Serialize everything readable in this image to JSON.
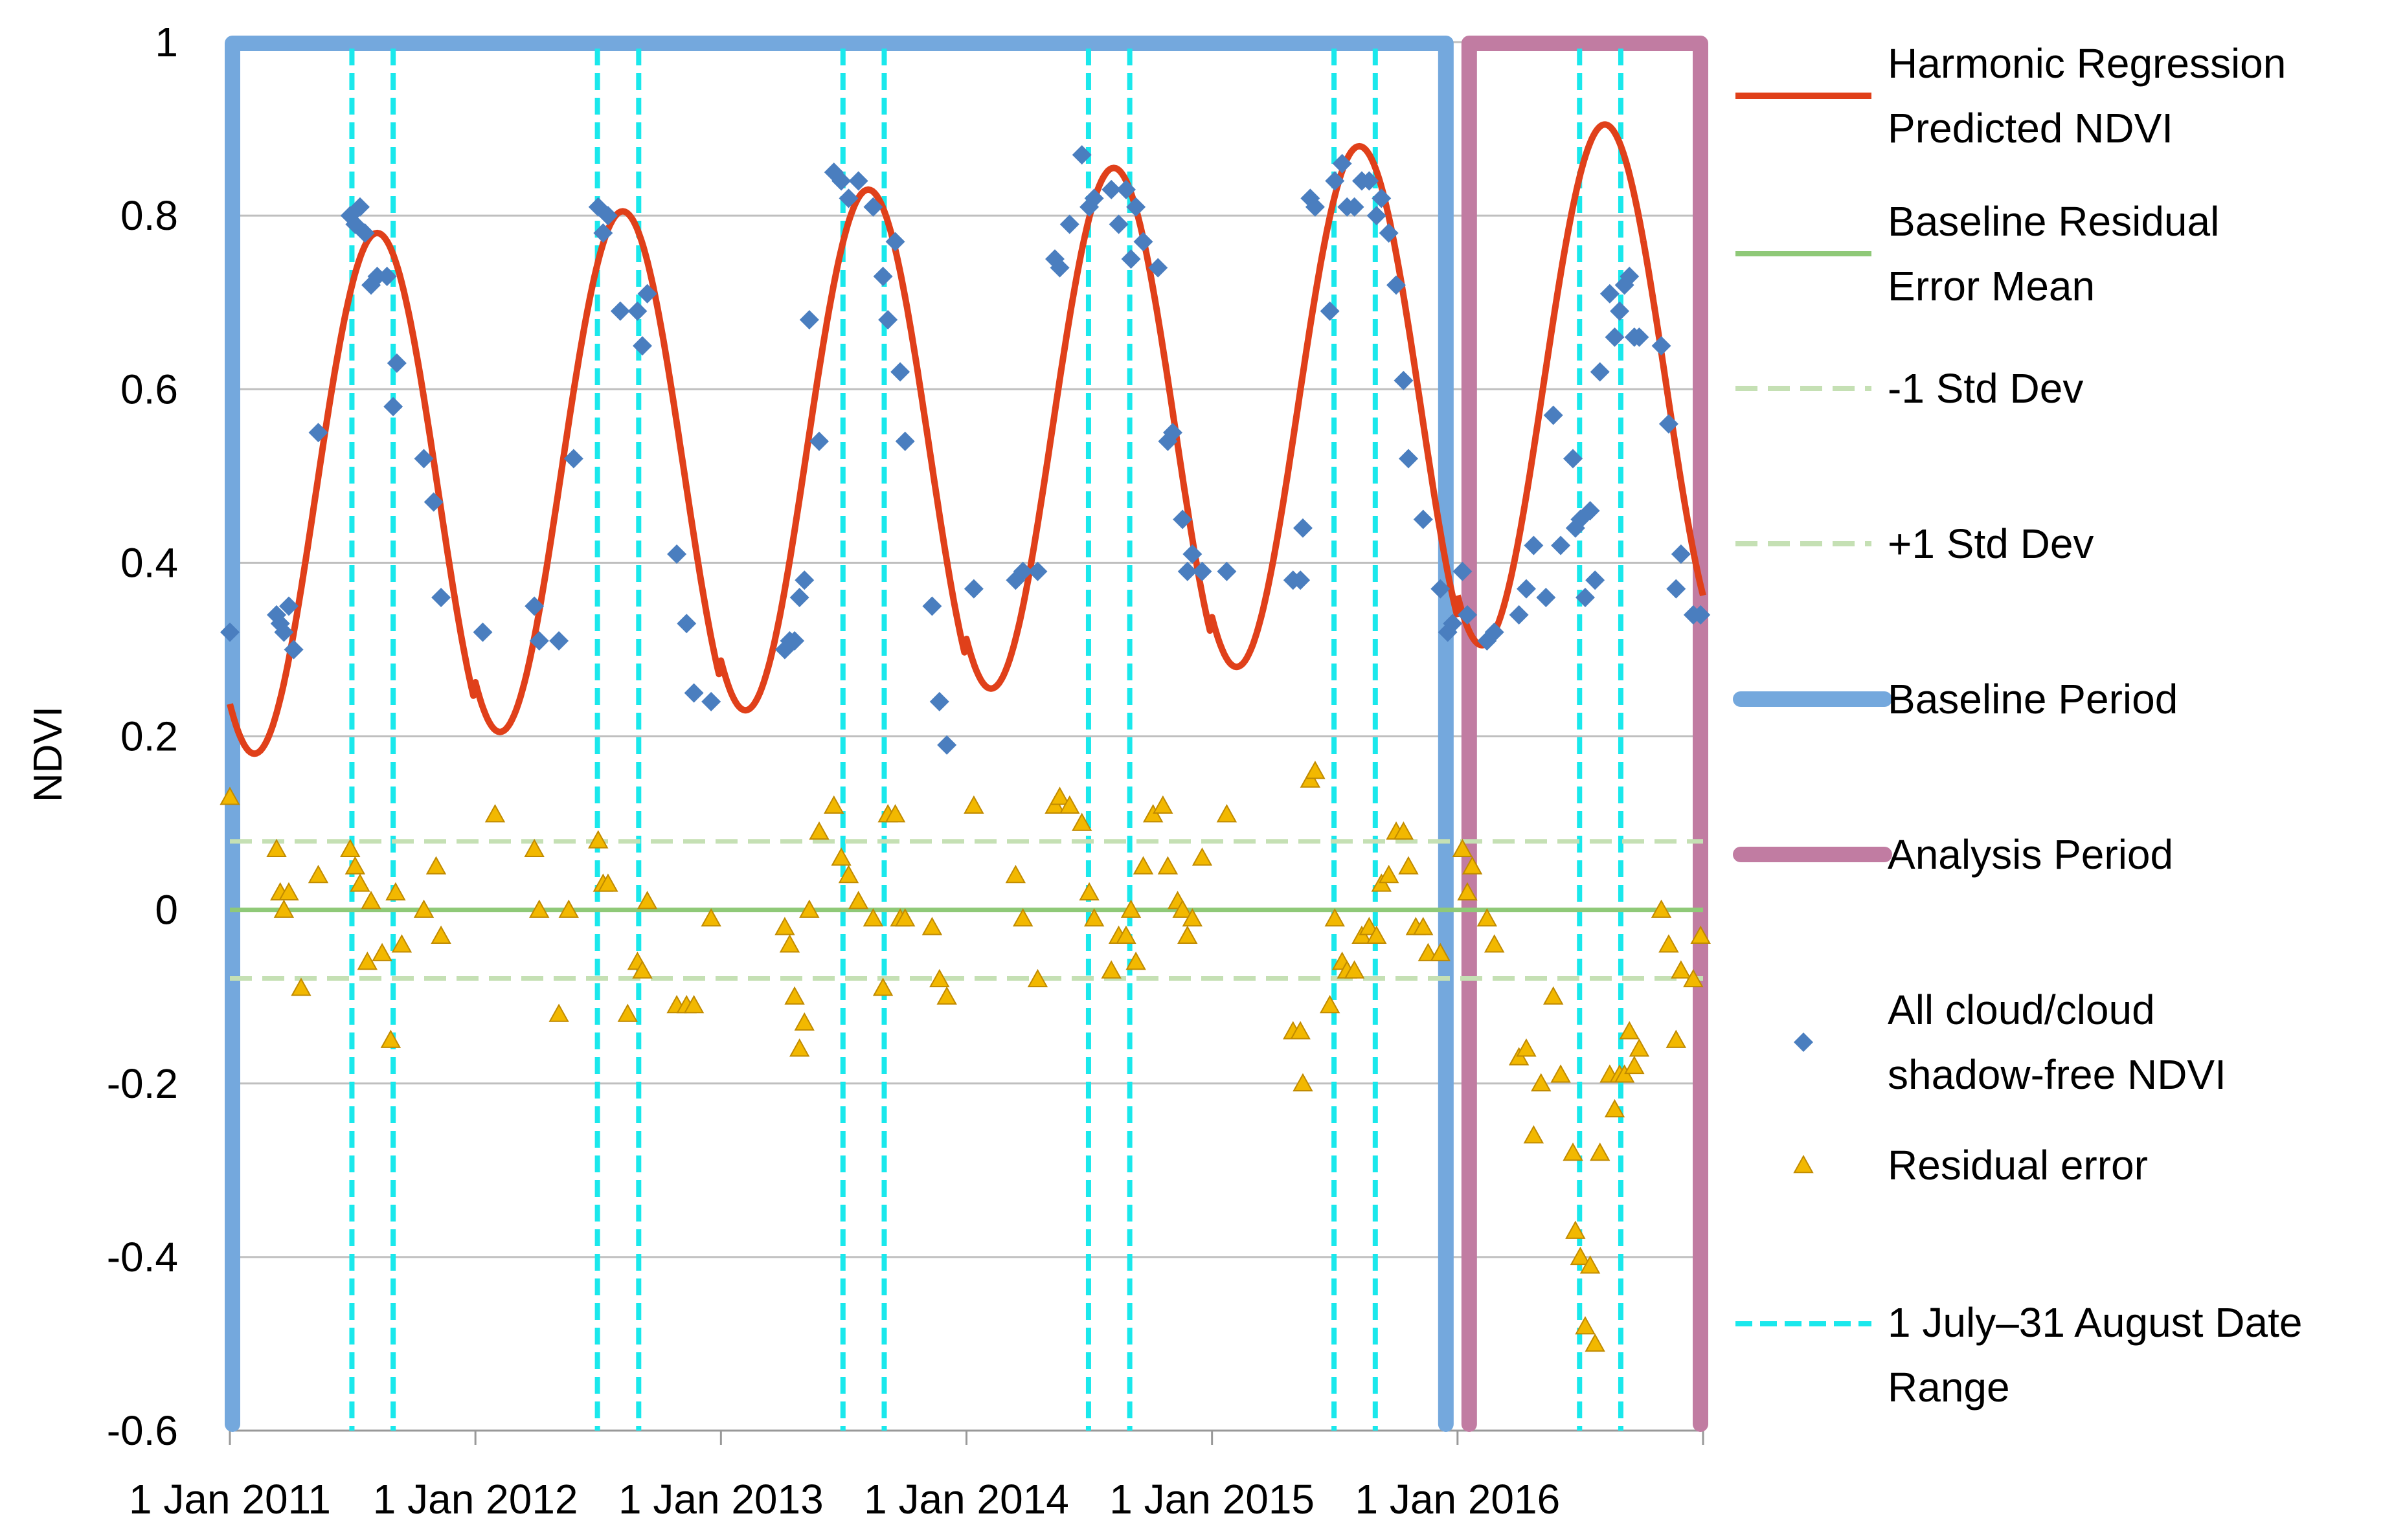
{
  "chart_data": {
    "type": "line",
    "title": "",
    "ylabel": "NDVI",
    "xlabel": "",
    "ylim": [
      -0.6,
      1.0
    ],
    "yticks": [
      1,
      0.8,
      0.6,
      0.4,
      0.2,
      0,
      -0.2,
      -0.4,
      -0.6
    ],
    "ytick_labels": [
      "1",
      "0.8",
      "0.6",
      "0.4",
      "0.2",
      "0",
      "-0.2",
      "-0.4",
      "-0.6"
    ],
    "xlim": [
      2011.0,
      2017.0
    ],
    "xticks": [
      2011,
      2012,
      2013,
      2014,
      2015,
      2016
    ],
    "xtick_labels": [
      "1 Jan 2011",
      "1 Jan 2012",
      "1 Jan 2013",
      "1 Jan 2014",
      "1 Jan 2015",
      "1 Jan 2016"
    ],
    "grid": true,
    "legend_position": "right",
    "colors": {
      "harmonic": "#e0401a",
      "baseline_mean": "#8fc978",
      "std_dev": "#c5e0b4",
      "baseline_period": "#74a8dd",
      "analysis_period": "#c17ca2",
      "ndvi_points": "#4a7ebf",
      "residual_points": "#f2b800",
      "date_range": "#1ae8ec"
    },
    "harmonic_model": {
      "name": "Harmonic Regression Predicted NDVI",
      "segments": [
        {
          "start": 2011.0,
          "end": 2016.0,
          "min": [
            0.18,
            0.205,
            0.23,
            0.255,
            0.28
          ],
          "max": [
            0.78,
            0.805,
            0.83,
            0.855,
            0.88
          ]
        },
        {
          "start": 2016.0,
          "end": 2017.0,
          "min": [
            0.305
          ],
          "max": [
            0.905
          ]
        }
      ],
      "peak_phase": 0.6,
      "trough_phase": 0.0
    },
    "baseline_residual_mean": {
      "name": "Baseline Residual Error Mean",
      "value": 0.0
    },
    "std_dev_lines": [
      {
        "name": "-1 Std Dev",
        "value": -0.079
      },
      {
        "name": "+1 Std Dev",
        "value": 0.079
      }
    ],
    "periods": [
      {
        "name": "Baseline Period",
        "start": 2011.0,
        "end": 2016.0
      },
      {
        "name": "Analysis Period",
        "start": 2016.0,
        "end": 2017.0
      }
    ],
    "date_range_lines": {
      "name": "1 July–31 August Date Range",
      "x": [
        2011.497,
        2011.665,
        2012.497,
        2012.665,
        2013.497,
        2013.665,
        2014.497,
        2014.665,
        2015.497,
        2015.665,
        2016.497,
        2016.665
      ]
    },
    "ndvi_points": {
      "name": "All cloud/cloud shadow-free NDVI",
      "points": [
        [
          2011.0,
          0.32
        ],
        [
          2011.19,
          0.34
        ],
        [
          2011.205,
          0.33
        ],
        [
          2011.22,
          0.32
        ],
        [
          2011.24,
          0.35
        ],
        [
          2011.26,
          0.3
        ],
        [
          2011.36,
          0.55
        ],
        [
          2011.49,
          0.8
        ],
        [
          2011.51,
          0.79
        ],
        [
          2011.53,
          0.81
        ],
        [
          2011.55,
          0.78
        ],
        [
          2011.575,
          0.72
        ],
        [
          2011.6,
          0.73
        ],
        [
          2011.64,
          0.73
        ],
        [
          2011.665,
          0.58
        ],
        [
          2011.68,
          0.63
        ],
        [
          2011.79,
          0.52
        ],
        [
          2011.83,
          0.47
        ],
        [
          2011.86,
          0.36
        ],
        [
          2012.03,
          0.32
        ],
        [
          2012.24,
          0.35
        ],
        [
          2012.26,
          0.31
        ],
        [
          2012.34,
          0.31
        ],
        [
          2012.4,
          0.52
        ],
        [
          2012.5,
          0.81
        ],
        [
          2012.52,
          0.78
        ],
        [
          2012.54,
          0.8
        ],
        [
          2012.59,
          0.69
        ],
        [
          2012.66,
          0.69
        ],
        [
          2012.68,
          0.65
        ],
        [
          2012.7,
          0.71
        ],
        [
          2012.82,
          0.41
        ],
        [
          2012.86,
          0.33
        ],
        [
          2012.89,
          0.25
        ],
        [
          2012.96,
          0.24
        ],
        [
          2013.26,
          0.3
        ],
        [
          2013.28,
          0.31
        ],
        [
          2013.3,
          0.31
        ],
        [
          2013.32,
          0.36
        ],
        [
          2013.34,
          0.38
        ],
        [
          2013.36,
          0.68
        ],
        [
          2013.4,
          0.54
        ],
        [
          2013.46,
          0.85
        ],
        [
          2013.49,
          0.84
        ],
        [
          2013.52,
          0.82
        ],
        [
          2013.56,
          0.84
        ],
        [
          2013.62,
          0.81
        ],
        [
          2013.66,
          0.73
        ],
        [
          2013.68,
          0.68
        ],
        [
          2013.71,
          0.77
        ],
        [
          2013.73,
          0.62
        ],
        [
          2013.75,
          0.54
        ],
        [
          2013.86,
          0.35
        ],
        [
          2013.89,
          0.24
        ],
        [
          2013.92,
          0.19
        ],
        [
          2014.03,
          0.37
        ],
        [
          2014.2,
          0.38
        ],
        [
          2014.23,
          0.39
        ],
        [
          2014.29,
          0.39
        ],
        [
          2014.36,
          0.75
        ],
        [
          2014.38,
          0.74
        ],
        [
          2014.42,
          0.79
        ],
        [
          2014.47,
          0.87
        ],
        [
          2014.5,
          0.81
        ],
        [
          2014.52,
          0.82
        ],
        [
          2014.59,
          0.83
        ],
        [
          2014.62,
          0.79
        ],
        [
          2014.65,
          0.83
        ],
        [
          2014.67,
          0.75
        ],
        [
          2014.69,
          0.81
        ],
        [
          2014.72,
          0.77
        ],
        [
          2014.78,
          0.74
        ],
        [
          2014.82,
          0.54
        ],
        [
          2014.84,
          0.55
        ],
        [
          2014.88,
          0.45
        ],
        [
          2014.9,
          0.39
        ],
        [
          2014.92,
          0.41
        ],
        [
          2014.96,
          0.39
        ],
        [
          2015.06,
          0.39
        ],
        [
          2015.33,
          0.38
        ],
        [
          2015.36,
          0.38
        ],
        [
          2015.37,
          0.44
        ],
        [
          2015.4,
          0.82
        ],
        [
          2015.42,
          0.81
        ],
        [
          2015.48,
          0.69
        ],
        [
          2015.5,
          0.84
        ],
        [
          2015.53,
          0.86
        ],
        [
          2015.55,
          0.81
        ],
        [
          2015.58,
          0.81
        ],
        [
          2015.61,
          0.84
        ],
        [
          2015.64,
          0.84
        ],
        [
          2015.67,
          0.8
        ],
        [
          2015.69,
          0.82
        ],
        [
          2015.72,
          0.78
        ],
        [
          2015.75,
          0.72
        ],
        [
          2015.78,
          0.61
        ],
        [
          2015.8,
          0.52
        ],
        [
          2015.86,
          0.45
        ],
        [
          2015.93,
          0.37
        ],
        [
          2015.96,
          0.32
        ],
        [
          2015.98,
          0.33
        ],
        [
          2016.02,
          0.39
        ],
        [
          2016.04,
          0.34
        ],
        [
          2016.12,
          0.31
        ],
        [
          2016.15,
          0.32
        ],
        [
          2016.25,
          0.34
        ],
        [
          2016.28,
          0.37
        ],
        [
          2016.31,
          0.42
        ],
        [
          2016.36,
          0.36
        ],
        [
          2016.39,
          0.57
        ],
        [
          2016.42,
          0.42
        ],
        [
          2016.47,
          0.52
        ],
        [
          2016.48,
          0.44
        ],
        [
          2016.5,
          0.45
        ],
        [
          2016.52,
          0.36
        ],
        [
          2016.54,
          0.46
        ],
        [
          2016.56,
          0.38
        ],
        [
          2016.58,
          0.62
        ],
        [
          2016.62,
          0.71
        ],
        [
          2016.64,
          0.66
        ],
        [
          2016.66,
          0.69
        ],
        [
          2016.68,
          0.72
        ],
        [
          2016.7,
          0.73
        ],
        [
          2016.72,
          0.66
        ],
        [
          2016.74,
          0.66
        ],
        [
          2016.83,
          0.65
        ],
        [
          2016.86,
          0.56
        ],
        [
          2016.89,
          0.37
        ],
        [
          2016.91,
          0.41
        ],
        [
          2016.96,
          0.34
        ],
        [
          2016.99,
          0.34
        ]
      ]
    },
    "residual_points": {
      "name": "Residual error",
      "points": [
        [
          2011.0,
          0.13
        ],
        [
          2011.19,
          0.07
        ],
        [
          2011.205,
          0.02
        ],
        [
          2011.22,
          0.0
        ],
        [
          2011.24,
          0.02
        ],
        [
          2011.29,
          -0.09
        ],
        [
          2011.36,
          0.04
        ],
        [
          2011.49,
          0.07
        ],
        [
          2011.51,
          0.05
        ],
        [
          2011.53,
          0.03
        ],
        [
          2011.56,
          -0.06
        ],
        [
          2011.575,
          0.01
        ],
        [
          2011.62,
          -0.05
        ],
        [
          2011.655,
          -0.15
        ],
        [
          2011.675,
          0.02
        ],
        [
          2011.7,
          -0.04
        ],
        [
          2011.79,
          0.0
        ],
        [
          2011.84,
          0.05
        ],
        [
          2011.86,
          -0.03
        ],
        [
          2012.08,
          0.11
        ],
        [
          2012.24,
          0.07
        ],
        [
          2012.26,
          0.0
        ],
        [
          2012.34,
          -0.12
        ],
        [
          2012.38,
          0.0
        ],
        [
          2012.5,
          0.08
        ],
        [
          2012.52,
          0.03
        ],
        [
          2012.54,
          0.03
        ],
        [
          2012.62,
          -0.12
        ],
        [
          2012.66,
          -0.06
        ],
        [
          2012.68,
          -0.07
        ],
        [
          2012.7,
          0.01
        ],
        [
          2012.82,
          -0.11
        ],
        [
          2012.86,
          -0.11
        ],
        [
          2012.89,
          -0.11
        ],
        [
          2012.96,
          -0.01
        ],
        [
          2013.26,
          -0.02
        ],
        [
          2013.28,
          -0.04
        ],
        [
          2013.3,
          -0.1
        ],
        [
          2013.32,
          -0.16
        ],
        [
          2013.34,
          -0.13
        ],
        [
          2013.36,
          0.0
        ],
        [
          2013.4,
          0.09
        ],
        [
          2013.46,
          0.12
        ],
        [
          2013.49,
          0.06
        ],
        [
          2013.52,
          0.04
        ],
        [
          2013.56,
          0.01
        ],
        [
          2013.62,
          -0.01
        ],
        [
          2013.66,
          -0.09
        ],
        [
          2013.68,
          0.11
        ],
        [
          2013.71,
          0.11
        ],
        [
          2013.73,
          -0.01
        ],
        [
          2013.75,
          -0.01
        ],
        [
          2013.86,
          -0.02
        ],
        [
          2013.89,
          -0.08
        ],
        [
          2013.92,
          -0.1
        ],
        [
          2014.03,
          0.12
        ],
        [
          2014.2,
          0.04
        ],
        [
          2014.23,
          -0.01
        ],
        [
          2014.29,
          -0.08
        ],
        [
          2014.36,
          0.12
        ],
        [
          2014.38,
          0.13
        ],
        [
          2014.42,
          0.12
        ],
        [
          2014.47,
          0.1
        ],
        [
          2014.5,
          0.02
        ],
        [
          2014.52,
          -0.01
        ],
        [
          2014.59,
          -0.07
        ],
        [
          2014.62,
          -0.03
        ],
        [
          2014.65,
          -0.03
        ],
        [
          2014.67,
          0.0
        ],
        [
          2014.69,
          -0.06
        ],
        [
          2014.72,
          0.05
        ],
        [
          2014.76,
          0.11
        ],
        [
          2014.8,
          0.12
        ],
        [
          2014.82,
          0.05
        ],
        [
          2014.86,
          0.01
        ],
        [
          2014.88,
          0.0
        ],
        [
          2014.9,
          -0.03
        ],
        [
          2014.92,
          -0.01
        ],
        [
          2014.96,
          0.06
        ],
        [
          2015.06,
          0.11
        ],
        [
          2015.33,
          -0.14
        ],
        [
          2015.36,
          -0.14
        ],
        [
          2015.37,
          -0.2
        ],
        [
          2015.4,
          0.15
        ],
        [
          2015.42,
          0.16
        ],
        [
          2015.48,
          -0.11
        ],
        [
          2015.5,
          -0.01
        ],
        [
          2015.53,
          -0.06
        ],
        [
          2015.55,
          -0.07
        ],
        [
          2015.58,
          -0.07
        ],
        [
          2015.61,
          -0.03
        ],
        [
          2015.64,
          -0.02
        ],
        [
          2015.67,
          -0.03
        ],
        [
          2015.69,
          0.03
        ],
        [
          2015.72,
          0.04
        ],
        [
          2015.75,
          0.09
        ],
        [
          2015.78,
          0.09
        ],
        [
          2015.8,
          0.05
        ],
        [
          2015.83,
          -0.02
        ],
        [
          2015.86,
          -0.02
        ],
        [
          2015.88,
          -0.05
        ],
        [
          2015.93,
          -0.05
        ],
        [
          2016.02,
          0.07
        ],
        [
          2016.04,
          0.02
        ],
        [
          2016.06,
          0.05
        ],
        [
          2016.12,
          -0.01
        ],
        [
          2016.15,
          -0.04
        ],
        [
          2016.25,
          -0.17
        ],
        [
          2016.28,
          -0.16
        ],
        [
          2016.31,
          -0.26
        ],
        [
          2016.34,
          -0.2
        ],
        [
          2016.39,
          -0.1
        ],
        [
          2016.42,
          -0.19
        ],
        [
          2016.47,
          -0.28
        ],
        [
          2016.48,
          -0.37
        ],
        [
          2016.5,
          -0.4
        ],
        [
          2016.52,
          -0.48
        ],
        [
          2016.54,
          -0.41
        ],
        [
          2016.56,
          -0.5
        ],
        [
          2016.58,
          -0.28
        ],
        [
          2016.62,
          -0.19
        ],
        [
          2016.64,
          -0.23
        ],
        [
          2016.66,
          -0.19
        ],
        [
          2016.68,
          -0.19
        ],
        [
          2016.7,
          -0.14
        ],
        [
          2016.72,
          -0.18
        ],
        [
          2016.74,
          -0.16
        ],
        [
          2016.83,
          0.0
        ],
        [
          2016.86,
          -0.04
        ],
        [
          2016.89,
          -0.15
        ],
        [
          2016.91,
          -0.07
        ],
        [
          2016.96,
          -0.08
        ],
        [
          2016.99,
          -0.03
        ]
      ]
    }
  }
}
